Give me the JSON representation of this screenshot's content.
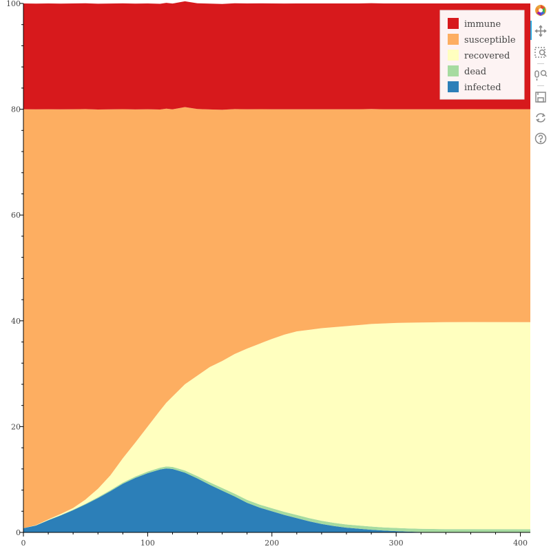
{
  "chart_data": {
    "type": "area",
    "stacked": true,
    "x_range": [
      0,
      408
    ],
    "y_range": [
      0,
      100
    ],
    "x_ticks": [
      0,
      100,
      200,
      300,
      400
    ],
    "y_ticks": [
      0,
      20,
      40,
      60,
      80,
      100
    ],
    "legend_position": "top-right",
    "series": [
      {
        "name": "infected",
        "color": "#2c7fb8",
        "points": [
          [
            0,
            0.8
          ],
          [
            10,
            1.3
          ],
          [
            20,
            2.3
          ],
          [
            30,
            3.2
          ],
          [
            40,
            4.2
          ],
          [
            50,
            5.3
          ],
          [
            60,
            6.5
          ],
          [
            70,
            7.8
          ],
          [
            80,
            9.2
          ],
          [
            90,
            10.3
          ],
          [
            100,
            11.2
          ],
          [
            110,
            11.9
          ],
          [
            115,
            12.1
          ],
          [
            120,
            12.0
          ],
          [
            130,
            11.3
          ],
          [
            140,
            10.2
          ],
          [
            150,
            9.0
          ],
          [
            160,
            7.9
          ],
          [
            170,
            6.8
          ],
          [
            180,
            5.6
          ],
          [
            190,
            4.7
          ],
          [
            200,
            4.0
          ],
          [
            210,
            3.3
          ],
          [
            220,
            2.7
          ],
          [
            230,
            2.1
          ],
          [
            240,
            1.6
          ],
          [
            250,
            1.2
          ],
          [
            260,
            0.9
          ],
          [
            270,
            0.7
          ],
          [
            280,
            0.5
          ],
          [
            290,
            0.35
          ],
          [
            300,
            0.25
          ],
          [
            310,
            0.15
          ],
          [
            320,
            0.08
          ],
          [
            330,
            0.05
          ],
          [
            340,
            0.02
          ],
          [
            408,
            0
          ]
        ]
      },
      {
        "name": "dead",
        "color": "#a6dba0",
        "points": [
          [
            0,
            0
          ],
          [
            20,
            0.05
          ],
          [
            40,
            0.1
          ],
          [
            60,
            0.15
          ],
          [
            80,
            0.22
          ],
          [
            100,
            0.3
          ],
          [
            120,
            0.38
          ],
          [
            140,
            0.44
          ],
          [
            160,
            0.5
          ],
          [
            180,
            0.55
          ],
          [
            200,
            0.58
          ],
          [
            220,
            0.6
          ],
          [
            240,
            0.6
          ],
          [
            260,
            0.6
          ],
          [
            408,
            0.6
          ]
        ]
      },
      {
        "name": "recovered",
        "color": "#ffffbf",
        "points": [
          [
            0,
            0
          ],
          [
            20,
            0.1
          ],
          [
            40,
            0.3
          ],
          [
            50,
            0.8
          ],
          [
            60,
            1.6
          ],
          [
            70,
            2.8
          ],
          [
            80,
            4.6
          ],
          [
            90,
            6.4
          ],
          [
            100,
            8.5
          ],
          [
            110,
            10.8
          ],
          [
            120,
            13.3
          ],
          [
            130,
            16.3
          ],
          [
            140,
            19.0
          ],
          [
            150,
            21.8
          ],
          [
            160,
            24.0
          ],
          [
            170,
            26.4
          ],
          [
            180,
            28.6
          ],
          [
            190,
            30.4
          ],
          [
            200,
            32.0
          ],
          [
            210,
            33.5
          ],
          [
            220,
            34.7
          ],
          [
            230,
            35.6
          ],
          [
            240,
            36.4
          ],
          [
            250,
            37.0
          ],
          [
            260,
            37.5
          ],
          [
            270,
            37.9
          ],
          [
            280,
            38.3
          ],
          [
            290,
            38.55
          ],
          [
            300,
            38.75
          ],
          [
            310,
            38.9
          ],
          [
            320,
            39.0
          ],
          [
            330,
            39.07
          ],
          [
            340,
            39.12
          ],
          [
            360,
            39.15
          ],
          [
            408,
            39.15
          ]
        ]
      },
      {
        "name": "susceptible",
        "color": "#fdae61",
        "points": [
          [
            0,
            79.2
          ],
          [
            10,
            78.6
          ],
          [
            20,
            77.55
          ],
          [
            30,
            76.5
          ],
          [
            40,
            75.4
          ],
          [
            50,
            73.8
          ],
          [
            60,
            71.7
          ],
          [
            70,
            69.2
          ],
          [
            80,
            66.0
          ],
          [
            90,
            63.0
          ],
          [
            100,
            60.0
          ],
          [
            110,
            56.9
          ],
          [
            120,
            54.3
          ],
          [
            130,
            52.4
          ],
          [
            140,
            50.4
          ],
          [
            150,
            48.7
          ],
          [
            160,
            47.5
          ],
          [
            170,
            46.3
          ],
          [
            180,
            45.25
          ],
          [
            190,
            44.35
          ],
          [
            200,
            43.42
          ],
          [
            210,
            42.6
          ],
          [
            220,
            42.0
          ],
          [
            230,
            41.7
          ],
          [
            240,
            41.4
          ],
          [
            250,
            41.2
          ],
          [
            260,
            41.0
          ],
          [
            270,
            40.8
          ],
          [
            280,
            40.65
          ],
          [
            290,
            40.5
          ],
          [
            300,
            40.4
          ],
          [
            310,
            40.35
          ],
          [
            320,
            40.32
          ],
          [
            330,
            40.28
          ],
          [
            340,
            40.26
          ],
          [
            360,
            40.25
          ],
          [
            408,
            40.25
          ]
        ]
      },
      {
        "name": "immune",
        "color": "#d7191c",
        "points": [
          [
            0,
            20
          ],
          [
            408,
            20
          ]
        ]
      }
    ],
    "legend_order": [
      "immune",
      "susceptible",
      "recovered",
      "dead",
      "infected"
    ]
  },
  "toolbar": {
    "items": [
      "bokeh-logo-icon",
      "pan-icon",
      "box-zoom-icon",
      "wheel-zoom-icon",
      "save-icon",
      "reset-icon",
      "help-icon"
    ]
  }
}
